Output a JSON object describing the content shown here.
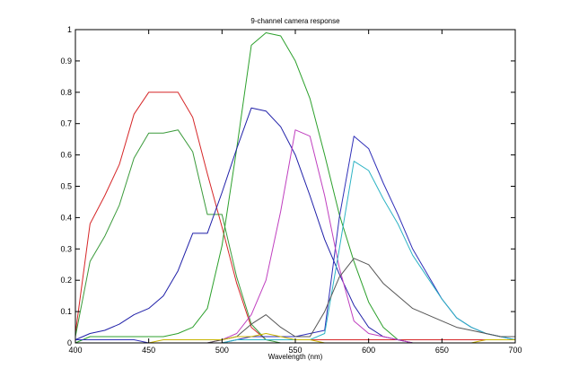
{
  "chart_data": {
    "type": "line",
    "title": "9-channel camera response",
    "xlabel": "Wavelength (nm)",
    "ylabel": "",
    "xlim": [
      400,
      700
    ],
    "ylim": [
      0,
      1
    ],
    "grid": false,
    "xticks": [
      "400",
      "450",
      "500",
      "550",
      "600",
      "650",
      "700"
    ],
    "yticks": [
      "0",
      "0.1",
      "0.2",
      "0.3",
      "0.4",
      "0.5",
      "0.6",
      "0.7",
      "0.8",
      "0.9",
      "1"
    ],
    "x": [
      400,
      410,
      420,
      430,
      440,
      450,
      460,
      470,
      480,
      490,
      500,
      510,
      520,
      530,
      540,
      550,
      560,
      570,
      580,
      590,
      600,
      610,
      620,
      630,
      640,
      650,
      660,
      670,
      680,
      690,
      700
    ],
    "series": [
      {
        "color": "#d62728",
        "values": [
          0.03,
          0.38,
          0.47,
          0.57,
          0.73,
          0.8,
          0.8,
          0.8,
          0.72,
          0.54,
          0.37,
          0.19,
          0.05,
          0.01,
          0.01,
          0.01,
          0.01,
          0.01,
          0.01,
          0.01,
          0.01,
          0.01,
          0.01,
          0.01,
          0.01,
          0.01,
          0.01,
          0.01,
          0.01,
          0.01,
          0.01
        ]
      },
      {
        "color": "#3a9a3a",
        "values": [
          0.02,
          0.26,
          0.34,
          0.44,
          0.59,
          0.67,
          0.67,
          0.68,
          0.61,
          0.41,
          0.41,
          0.21,
          0.06,
          0.01,
          0.0,
          0.0,
          0.0,
          0.0,
          0.0,
          0.0,
          0.0,
          0.0,
          0.0,
          0.0,
          0.0,
          0.0,
          0.0,
          0.0,
          0.0,
          0.0,
          0.0
        ]
      },
      {
        "color": "#2ca02c",
        "values": [
          0.0,
          0.02,
          0.02,
          0.02,
          0.02,
          0.02,
          0.02,
          0.03,
          0.05,
          0.11,
          0.31,
          0.62,
          0.95,
          0.99,
          0.98,
          0.9,
          0.78,
          0.6,
          0.41,
          0.26,
          0.13,
          0.05,
          0.01,
          0.0,
          0.0,
          0.0,
          0.0,
          0.0,
          0.0,
          0.0,
          0.0
        ]
      },
      {
        "color": "#1f1fa8",
        "values": [
          0.01,
          0.03,
          0.04,
          0.06,
          0.09,
          0.11,
          0.15,
          0.23,
          0.35,
          0.35,
          0.48,
          0.62,
          0.75,
          0.74,
          0.69,
          0.6,
          0.47,
          0.33,
          0.22,
          0.12,
          0.05,
          0.02,
          0.01,
          0.0,
          0.0,
          0.0,
          0.0,
          0.0,
          0.0,
          0.0,
          0.0
        ]
      },
      {
        "color": "#2f2fb8",
        "values": [
          0.01,
          0.01,
          0.01,
          0.01,
          0.01,
          0.0,
          0.0,
          0.0,
          0.0,
          0.0,
          0.0,
          0.01,
          0.02,
          0.02,
          0.02,
          0.02,
          0.03,
          0.04,
          0.4,
          0.66,
          0.62,
          0.51,
          0.41,
          0.3,
          0.22,
          0.14,
          0.08,
          0.05,
          0.03,
          0.02,
          0.01
        ]
      },
      {
        "color": "#bf3fbf",
        "values": [
          0.0,
          0.0,
          0.0,
          0.0,
          0.0,
          0.0,
          0.0,
          0.0,
          0.0,
          0.0,
          0.01,
          0.03,
          0.09,
          0.2,
          0.42,
          0.68,
          0.66,
          0.47,
          0.24,
          0.07,
          0.03,
          0.02,
          0.01,
          0.0,
          0.0,
          0.0,
          0.0,
          0.0,
          0.0,
          0.0,
          0.0
        ]
      },
      {
        "color": "#2cb3c4",
        "values": [
          0.0,
          0.0,
          0.0,
          0.0,
          0.0,
          0.0,
          0.0,
          0.0,
          0.0,
          0.0,
          0.0,
          0.01,
          0.01,
          0.01,
          0.01,
          0.01,
          0.01,
          0.03,
          0.3,
          0.58,
          0.55,
          0.46,
          0.38,
          0.28,
          0.21,
          0.14,
          0.08,
          0.05,
          0.03,
          0.02,
          0.01
        ]
      },
      {
        "color": "#555555",
        "values": [
          0.0,
          0.0,
          0.0,
          0.0,
          0.0,
          0.0,
          0.0,
          0.0,
          0.0,
          0.0,
          0.01,
          0.02,
          0.06,
          0.09,
          0.05,
          0.02,
          0.02,
          0.1,
          0.21,
          0.27,
          0.25,
          0.19,
          0.15,
          0.11,
          0.09,
          0.07,
          0.05,
          0.04,
          0.03,
          0.02,
          0.02
        ]
      },
      {
        "color": "#c8b400",
        "values": [
          0.0,
          0.0,
          0.0,
          0.0,
          0.0,
          0.0,
          0.01,
          0.01,
          0.01,
          0.01,
          0.01,
          0.02,
          0.02,
          0.03,
          0.02,
          0.01,
          0.01,
          0.0,
          0.0,
          0.0,
          0.0,
          0.0,
          0.0,
          0.0,
          0.0,
          0.0,
          0.0,
          0.0,
          0.01,
          0.01,
          0.01
        ]
      }
    ]
  }
}
